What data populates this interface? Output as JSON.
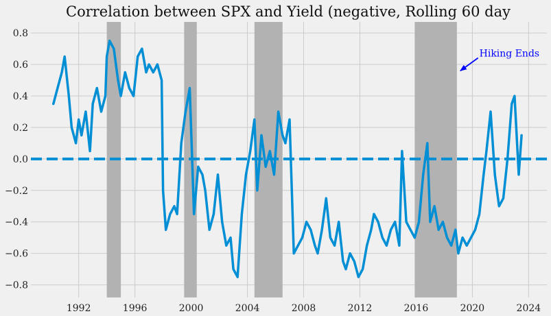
{
  "chart_data": {
    "type": "line",
    "title": "Correlation between SPX and Yield (negative, Rolling 60 day",
    "xlabel": "",
    "ylabel": "",
    "xlim": [
      1988.6,
      2025.3
    ],
    "ylim": [
      -0.88,
      0.87
    ],
    "x_ticks": [
      1992,
      1996,
      2000,
      2004,
      2008,
      2012,
      2016,
      2020,
      2024
    ],
    "x_tick_labels": [
      "1992",
      "1996",
      "2000",
      "2004",
      "2008",
      "2012",
      "2016",
      "2020",
      "2024"
    ],
    "y_ticks": [
      -0.8,
      -0.6,
      -0.4,
      -0.2,
      0.0,
      0.2,
      0.4,
      0.6,
      0.8
    ],
    "y_tick_labels": [
      "−0.8",
      "−0.6",
      "−0.4",
      "−0.2",
      "0.0",
      "0.2",
      "0.4",
      "0.6",
      "0.8"
    ],
    "grid": true,
    "reference_line": {
      "y": 0.0,
      "style": "dashed"
    },
    "shaded_periods": [
      {
        "start": 1994.0,
        "end": 1995.0
      },
      {
        "start": 1999.5,
        "end": 2000.4
      },
      {
        "start": 2004.5,
        "end": 2006.5
      },
      {
        "start": 2015.9,
        "end": 2018.9
      }
    ],
    "series": [
      {
        "name": "Rolling 60 day correlation",
        "x": [
          1990.2,
          1990.5,
          1990.8,
          1991.0,
          1991.3,
          1991.5,
          1991.8,
          1992.0,
          1992.2,
          1992.5,
          1992.8,
          1993.0,
          1993.3,
          1993.6,
          1993.9,
          1994.0,
          1994.2,
          1994.5,
          1994.8,
          1995.0,
          1995.3,
          1995.6,
          1995.9,
          1996.2,
          1996.5,
          1996.8,
          1997.0,
          1997.3,
          1997.6,
          1997.9,
          1998.0,
          1998.2,
          1998.5,
          1998.8,
          1999.0,
          1999.3,
          1999.6,
          1999.9,
          2000.2,
          2000.5,
          2000.8,
          2001.0,
          2001.3,
          2001.6,
          2001.9,
          2002.2,
          2002.5,
          2002.8,
          2003.0,
          2003.3,
          2003.6,
          2003.9,
          2004.2,
          2004.5,
          2004.7,
          2005.0,
          2005.3,
          2005.6,
          2005.9,
          2006.2,
          2006.5,
          2006.7,
          2007.0,
          2007.3,
          2007.6,
          2007.9,
          2008.2,
          2008.5,
          2008.8,
          2009.0,
          2009.3,
          2009.6,
          2009.9,
          2010.2,
          2010.5,
          2010.8,
          2011.0,
          2011.3,
          2011.6,
          2011.9,
          2012.2,
          2012.5,
          2012.8,
          2013.0,
          2013.3,
          2013.6,
          2013.9,
          2014.2,
          2014.5,
          2014.8,
          2015.0,
          2015.3,
          2015.6,
          2015.9,
          2016.2,
          2016.5,
          2016.8,
          2017.0,
          2017.3,
          2017.6,
          2017.9,
          2018.2,
          2018.5,
          2018.8,
          2019.0,
          2019.3,
          2019.6,
          2019.9,
          2020.2,
          2020.5,
          2020.8,
          2021.0,
          2021.3,
          2021.6,
          2021.9,
          2022.2,
          2022.5,
          2022.8,
          2023.0,
          2023.3,
          2023.5
        ],
        "y": [
          0.35,
          0.45,
          0.55,
          0.65,
          0.4,
          0.2,
          0.1,
          0.25,
          0.15,
          0.3,
          0.05,
          0.35,
          0.45,
          0.3,
          0.4,
          0.65,
          0.75,
          0.7,
          0.5,
          0.4,
          0.55,
          0.45,
          0.4,
          0.65,
          0.7,
          0.55,
          0.6,
          0.55,
          0.6,
          0.5,
          -0.2,
          -0.45,
          -0.35,
          -0.3,
          -0.35,
          0.1,
          0.3,
          0.45,
          -0.35,
          -0.05,
          -0.1,
          -0.2,
          -0.45,
          -0.35,
          -0.1,
          -0.4,
          -0.55,
          -0.5,
          -0.7,
          -0.75,
          -0.35,
          -0.1,
          0.05,
          0.25,
          -0.2,
          0.15,
          -0.05,
          0.05,
          -0.1,
          0.3,
          0.15,
          0.1,
          0.25,
          -0.6,
          -0.55,
          -0.5,
          -0.4,
          -0.45,
          -0.55,
          -0.6,
          -0.45,
          -0.25,
          -0.5,
          -0.55,
          -0.4,
          -0.65,
          -0.7,
          -0.6,
          -0.65,
          -0.75,
          -0.7,
          -0.55,
          -0.45,
          -0.35,
          -0.4,
          -0.5,
          -0.55,
          -0.45,
          -0.4,
          -0.55,
          0.05,
          -0.4,
          -0.45,
          -0.5,
          -0.4,
          -0.1,
          0.1,
          -0.4,
          -0.3,
          -0.45,
          -0.4,
          -0.5,
          -0.55,
          -0.45,
          -0.6,
          -0.5,
          -0.55,
          -0.5,
          -0.45,
          -0.35,
          -0.1,
          0.05,
          0.3,
          -0.1,
          -0.3,
          -0.25,
          0.0,
          0.35,
          0.4,
          -0.1,
          0.15
        ],
        "color": "#008fd5"
      }
    ],
    "annotations": [
      {
        "text": "Hiking Ends",
        "x": 2020.5,
        "y": 0.65,
        "arrow_to": {
          "x": 2019.0,
          "y": 0.56
        },
        "color": "#0000ff"
      }
    ]
  },
  "colors": {
    "background": "#f0f0f0",
    "grid": "#cbcbcb",
    "line": "#008fd5",
    "shade": "#b2b2b2",
    "annotation": "#0000ff"
  }
}
